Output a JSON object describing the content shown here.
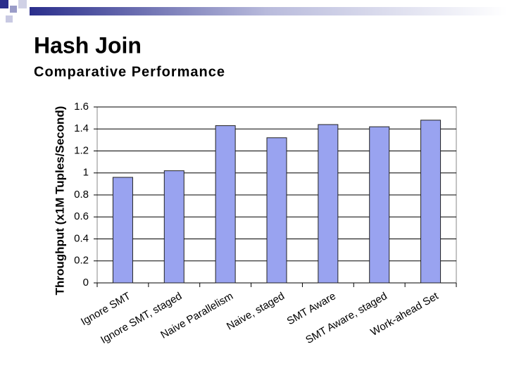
{
  "chart_data": {
    "type": "bar",
    "title": "Hash Join",
    "subtitle": "Comparative Performance",
    "y_label": "Throughput (x1M Tuples/Second)",
    "categories": [
      "Ignore SMT",
      "Ignore SMT, staged",
      "Naive Parallelism",
      "Naive, staged",
      "SMT Aware",
      "SMT Aware, staged",
      "Work-ahead Set"
    ],
    "values": [
      0.96,
      1.02,
      1.43,
      1.32,
      1.44,
      1.42,
      1.48
    ],
    "color": "#99a3f0",
    "ylim": [
      0,
      1.6
    ],
    "yticks": [
      0,
      0.2,
      0.4,
      0.6,
      0.8,
      1,
      1.2,
      1.4,
      1.6
    ],
    "grid": true
  }
}
